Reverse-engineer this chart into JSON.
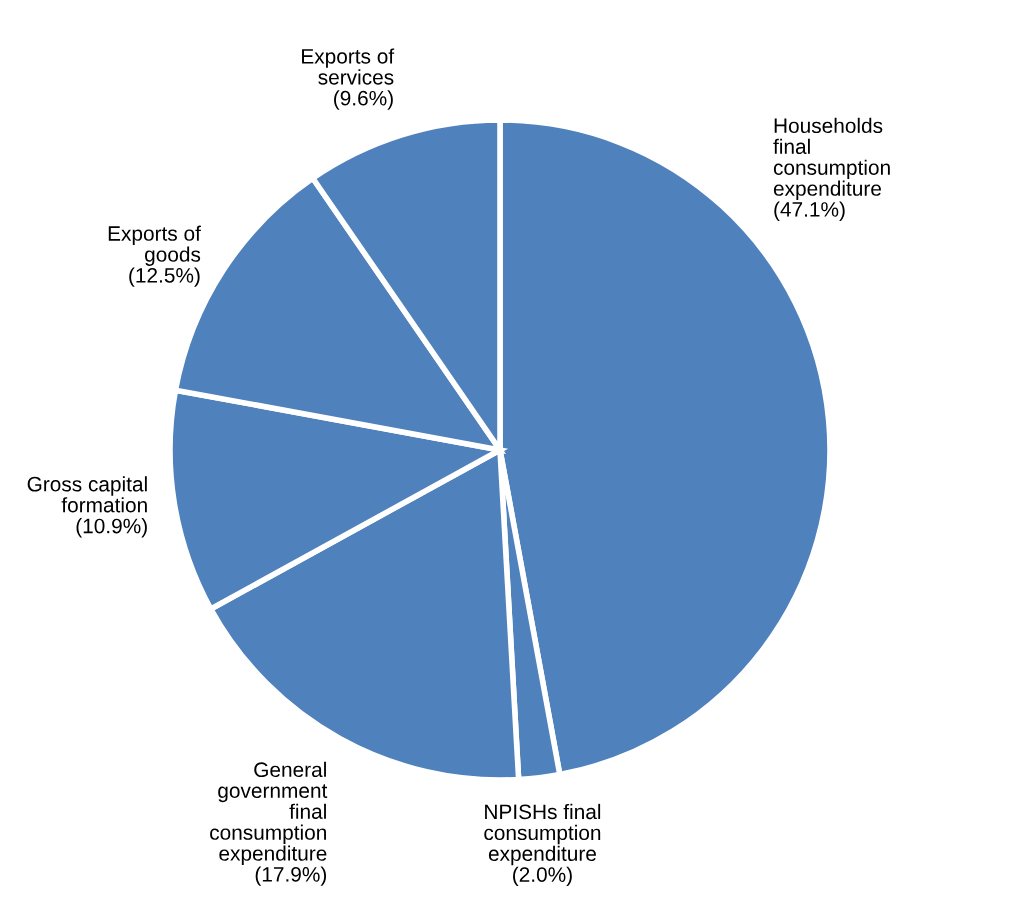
{
  "chart_data": {
    "type": "pie",
    "categories": [
      "Households\nfinal\nconsumption\nexpenditure",
      "NPISHs final\nconsumption\nexpenditure",
      "General\ngovernment\nfinal\nconsumption\nexpenditure",
      "Gross capital\nformation",
      "Exports of\ngoods",
      "Exports of\nservices"
    ],
    "values": [
      47.1,
      2.0,
      17.9,
      10.9,
      12.5,
      9.6
    ],
    "value_labels": [
      "(47.1%)",
      "(2.0%)",
      "(17.9%)",
      "(10.9%)",
      "(12.5%)",
      "(9.6%)"
    ],
    "colors": [
      "#4f81bd",
      "#4f81bd",
      "#4f81bd",
      "#4f81bd",
      "#4f81bd",
      "#4f81bd"
    ],
    "legend": false
  }
}
